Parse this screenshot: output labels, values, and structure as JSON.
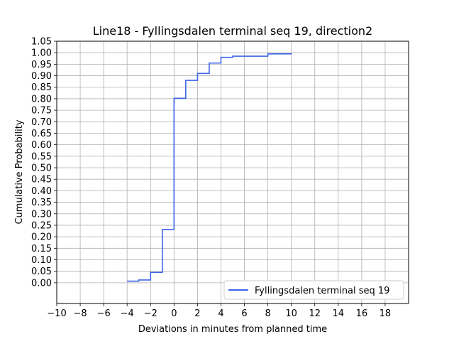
{
  "chart_data": {
    "type": "line",
    "step": "post",
    "title": "Line18 - Fyllingsdalen terminal seq 19, direction2",
    "xlabel": "Deviations in minutes from planned time",
    "ylabel": "Cumulative Probability",
    "xlim": [
      -10,
      20
    ],
    "ylim": [
      -0.09,
      1.05
    ],
    "xticks": [
      -10,
      -8,
      -6,
      -4,
      -2,
      0,
      2,
      4,
      6,
      8,
      10,
      12,
      14,
      16,
      18
    ],
    "xtick_labels": [
      "−10",
      "−8",
      "−6",
      "−4",
      "−2",
      "0",
      "2",
      "4",
      "6",
      "8",
      "10",
      "12",
      "14",
      "16",
      "18"
    ],
    "yticks": [
      0.0,
      0.05,
      0.1,
      0.15,
      0.2,
      0.25,
      0.3,
      0.35,
      0.4,
      0.45,
      0.5,
      0.55,
      0.6,
      0.65,
      0.7,
      0.75,
      0.8,
      0.85,
      0.9,
      0.95,
      1.0,
      1.05
    ],
    "ytick_labels": [
      "0.00",
      "0.05",
      "0.10",
      "0.15",
      "0.20",
      "0.25",
      "0.30",
      "0.35",
      "0.40",
      "0.45",
      "0.50",
      "0.55",
      "0.60",
      "0.65",
      "0.70",
      "0.75",
      "0.80",
      "0.85",
      "0.90",
      "0.95",
      "1.00",
      "1.05"
    ],
    "grid": true,
    "legend_position": "lower-right",
    "series": [
      {
        "name": "Fyllingsdalen terminal seq 19",
        "color": "#3e64e8",
        "x": [
          -4,
          -3,
          -2,
          -1,
          0,
          1,
          2,
          3,
          4,
          5,
          8,
          10
        ],
        "y": [
          0.007,
          0.012,
          0.045,
          0.232,
          0.802,
          0.88,
          0.91,
          0.955,
          0.98,
          0.985,
          0.995,
          0.998
        ]
      }
    ]
  }
}
